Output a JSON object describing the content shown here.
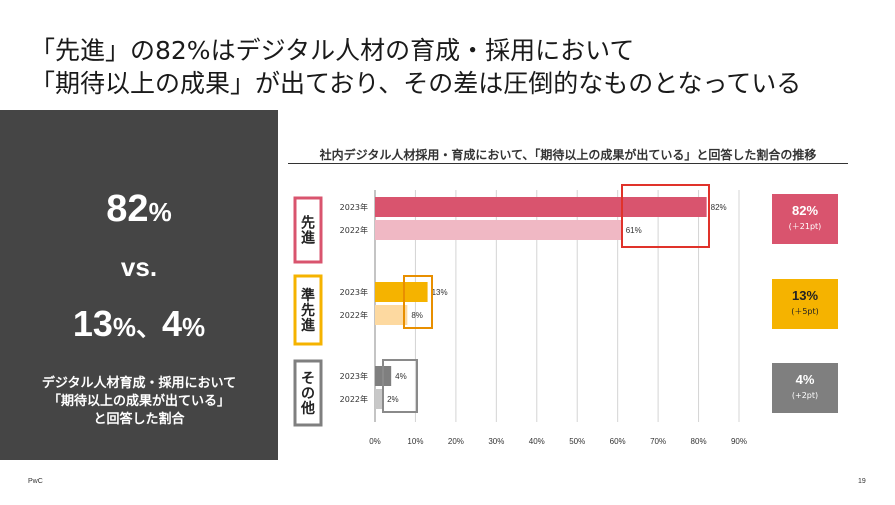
{
  "title": {
    "line1": "「先進」の82%はデジタル人材の育成・採用において",
    "line2": "「期待以上の成果」が出ており、その差は圧倒的なものとなっている"
  },
  "summary": {
    "top_value": "82",
    "top_unit": "%",
    "versus": "vs.",
    "bottom_value_a": "13",
    "bottom_unit_a": "%",
    "separator": "、",
    "bottom_value_b": "4",
    "bottom_unit_b": "%",
    "caption_line1": "デジタル人材育成・採用において",
    "caption_line2": "「期待以上の成果が出ている」",
    "caption_line3": "と回答した割合"
  },
  "footer": {
    "brand": "PwC",
    "page": "19"
  },
  "chart_data": {
    "type": "bar",
    "orientation": "horizontal",
    "title": "社内デジタル人材採用・育成において、「期待以上の成果が出ている」と回答した割合の推移",
    "xlim": [
      0,
      90
    ],
    "xticks": [
      "0%",
      "10%",
      "20%",
      "30%",
      "40%",
      "50%",
      "60%",
      "70%",
      "80%",
      "90%"
    ],
    "grid": true,
    "groups": [
      {
        "label": "先進",
        "color": "#d9546e",
        "bars": [
          {
            "year": "2023年",
            "value": 82,
            "label": "82%",
            "color": "#d9546e"
          },
          {
            "year": "2022年",
            "value": 61,
            "label": "61%",
            "color": "#f0b8c4"
          }
        ],
        "change_value": "82%",
        "change_delta": "(＋21pt)",
        "change_color": "#d9546e"
      },
      {
        "label": "準先進",
        "color": "#f5b300",
        "bars": [
          {
            "year": "2023年",
            "value": 13,
            "label": "13%",
            "color": "#f5b300"
          },
          {
            "year": "2022年",
            "value": 8,
            "label": "8%",
            "color": "#fdd9a0"
          }
        ],
        "change_value": "13%",
        "change_delta": "(＋5pt)",
        "change_color": "#f5b300"
      },
      {
        "label": "その他",
        "color": "#7f7f7f",
        "bars": [
          {
            "year": "2023年",
            "value": 4,
            "label": "4%",
            "color": "#7f7f7f"
          },
          {
            "year": "2022年",
            "value": 2,
            "label": "2%",
            "color": "#c8c8c8"
          }
        ],
        "change_value": "4%",
        "change_delta": "(+2pt)",
        "change_color": "#7f7f7f"
      }
    ]
  }
}
